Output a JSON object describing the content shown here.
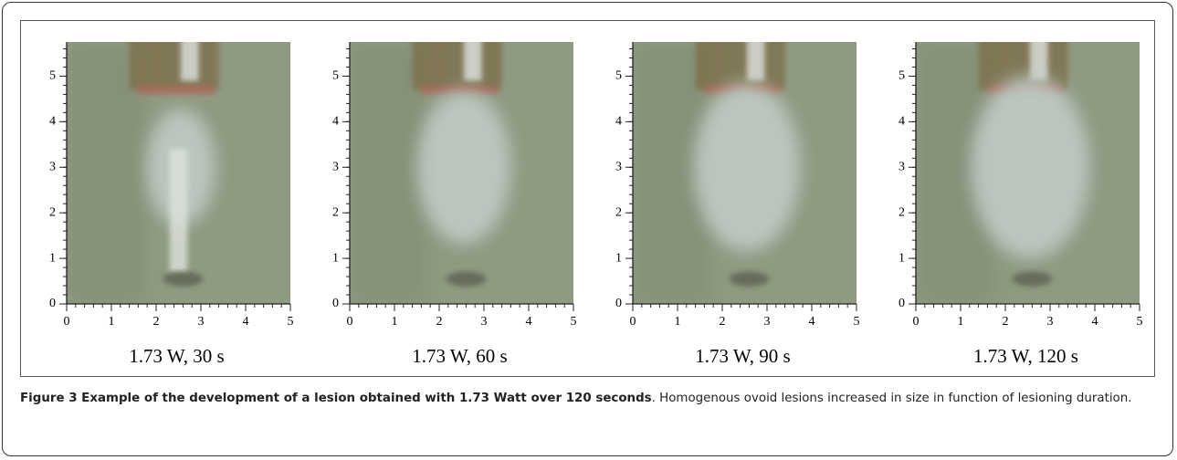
{
  "figure": {
    "xlim": [
      0,
      5
    ],
    "ylim": [
      0,
      5.75
    ],
    "xticks": [
      0,
      1,
      2,
      3,
      4,
      5
    ],
    "yticks": [
      0,
      1,
      2,
      3,
      4,
      5
    ],
    "panels": [
      {
        "label": "1.73 W, 30 s"
      },
      {
        "label": "1.73 W, 60 s"
      },
      {
        "label": "1.73 W, 90 s"
      },
      {
        "label": "1.73 W, 120 s"
      }
    ]
  },
  "caption": {
    "title": "Figure 3 Example of the development of a lesion obtained with 1.73 Watt over 120 seconds",
    "text": ". Homogenous ovoid lesions increased in size in function of lesioning duration."
  }
}
